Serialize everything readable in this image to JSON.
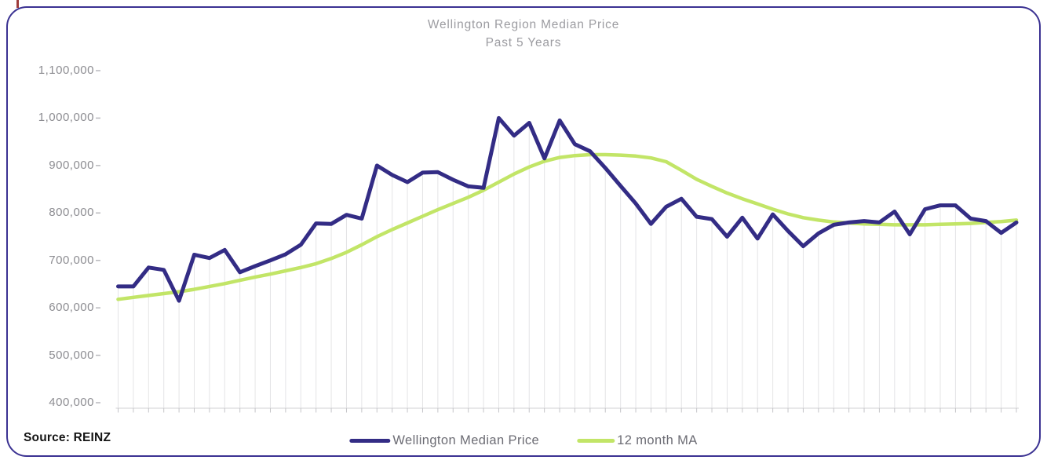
{
  "frame": {
    "border_color": "#3b3292",
    "corner_tick_color": "#9e3b3b"
  },
  "title": {
    "line1": "Wellington Region Median Price",
    "line2": "Past 5 Years"
  },
  "source": {
    "label": "Source: REINZ"
  },
  "legend": [
    {
      "label": "Wellington Median Price",
      "color": "#332c85"
    },
    {
      "label": "12 month MA",
      "color": "#c2e567"
    }
  ],
  "chart_data": {
    "type": "line",
    "title": "Wellington Region Median Price",
    "subtitle": "Past 5 Years",
    "xlabel": "",
    "ylabel": "",
    "ylim": [
      400000,
      1100000
    ],
    "y_ticks": [
      400000,
      500000,
      600000,
      700000,
      800000,
      900000,
      1000000,
      1100000
    ],
    "y_tick_labels": [
      "400,000",
      "500,000",
      "600,000",
      "700,000",
      "800,000",
      "900,000",
      "1,000,000",
      "1,100,000"
    ],
    "x_tick_labels_visible": false,
    "points_per_series": 60,
    "grid": "vertical drop lines from each data point",
    "legend_position": "bottom-center",
    "series": [
      {
        "name": "Wellington Median Price",
        "color": "#332c85",
        "stroke_width": 5,
        "values": [
          645000,
          645000,
          685000,
          680000,
          615000,
          712000,
          705000,
          722000,
          675000,
          688000,
          700000,
          713000,
          733000,
          778000,
          777000,
          796000,
          788000,
          900000,
          880000,
          865000,
          885000,
          886000,
          870000,
          856000,
          853000,
          1000000,
          963000,
          990000,
          915000,
          995000,
          945000,
          930000,
          895000,
          857000,
          820000,
          777000,
          813000,
          830000,
          792000,
          787000,
          750000,
          790000,
          746000,
          797000,
          762000,
          730000,
          757000,
          775000,
          780000,
          783000,
          780000,
          803000,
          755000,
          808000,
          816000,
          816000,
          788000,
          783000,
          758000,
          780000
        ]
      },
      {
        "name": "12 month MA",
        "color": "#c2e567",
        "stroke_width": 4.5,
        "values": [
          618000,
          622000,
          626000,
          630000,
          634000,
          639000,
          645000,
          651000,
          658000,
          665000,
          671000,
          678000,
          685000,
          693000,
          704000,
          717000,
          733000,
          750000,
          765000,
          779000,
          793000,
          807000,
          820000,
          833000,
          848000,
          865000,
          882000,
          897000,
          909000,
          917000,
          921000,
          923000,
          923000,
          922000,
          920000,
          916000,
          908000,
          890000,
          871000,
          856000,
          842000,
          830000,
          819000,
          808000,
          798000,
          790000,
          785000,
          781000,
          779000,
          777000,
          776000,
          775000,
          775000,
          775000,
          776000,
          777000,
          778000,
          780000,
          782000,
          785000
        ]
      }
    ]
  }
}
